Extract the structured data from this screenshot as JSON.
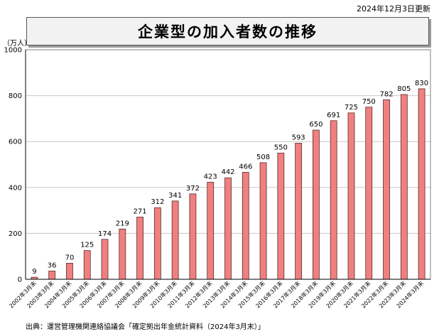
{
  "updated": "2024年12月3日更新",
  "unit": "（万人）",
  "source": "出典：運営管理機関連絡協議会「確定拠出年金統計資料（2024年3月末）」",
  "colors": {
    "bar": "#f08080",
    "bar_stroke": "#5a2a2a",
    "grid": "#c8c8c8",
    "axis": "#000000"
  },
  "chart_data": {
    "type": "bar",
    "title": "企業型の加入者数の推移",
    "xlabel": "",
    "ylabel": "（万人）",
    "ylim": [
      0,
      1000
    ],
    "yticks": [
      0,
      200,
      400,
      600,
      800,
      1000
    ],
    "grid": true,
    "categories": [
      "2002年3月末",
      "2003年3月末",
      "2004年3月末",
      "2005年3月末",
      "2006年3月末",
      "2007年3月末",
      "2008年3月末",
      "2009年3月末",
      "2010年3月末",
      "2011年3月末",
      "2012年3月末",
      "2013年3月末",
      "2014年3月末",
      "2015年3月末",
      "2016年3月末",
      "2017年3月末",
      "2018年3月末",
      "2019年3月末",
      "2020年3月末",
      "2021年3月末",
      "2022年3月末",
      "2023年3月末",
      "2024年3月末"
    ],
    "values": [
      9,
      36,
      70,
      125,
      174,
      219,
      271,
      312,
      341,
      372,
      423,
      442,
      466,
      508,
      550,
      593,
      650,
      691,
      725,
      750,
      782,
      805,
      830
    ]
  }
}
